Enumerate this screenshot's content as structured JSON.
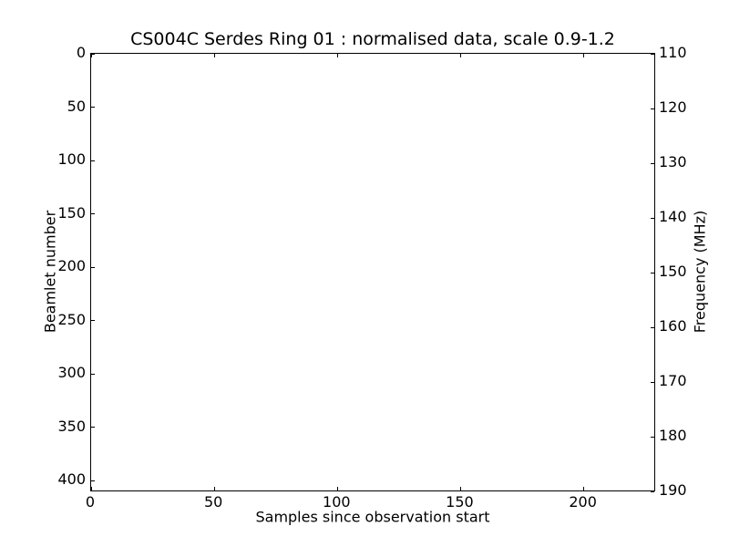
{
  "chart_data": {
    "type": "heatmap",
    "title": "CS004C Serdes Ring 01 : normalised data, scale 0.9-1.2",
    "xlabel": "Samples since observation start",
    "ylabel_left": "Beamlet number",
    "ylabel_right": "Frequency (MHz)",
    "x_ticks": [
      0,
      50,
      100,
      150,
      200
    ],
    "y_ticks_left": [
      0,
      50,
      100,
      150,
      200,
      250,
      300,
      350,
      400
    ],
    "y_ticks_right": [
      110,
      120,
      130,
      140,
      150,
      160,
      170,
      180,
      190
    ],
    "axes": {
      "x_range": [
        0,
        229
      ],
      "y_left_range_top_to_bottom": [
        0,
        410
      ],
      "y_right_range_top_to_bottom": [
        110,
        190
      ],
      "grid": false,
      "tick_direction": "in",
      "legend": "none"
    },
    "scale_range": [
      0.9,
      1.2
    ],
    "series": [],
    "colors": {
      "foreground": "#000000",
      "background": "#ffffff",
      "plot_background": "#ffffff"
    }
  }
}
